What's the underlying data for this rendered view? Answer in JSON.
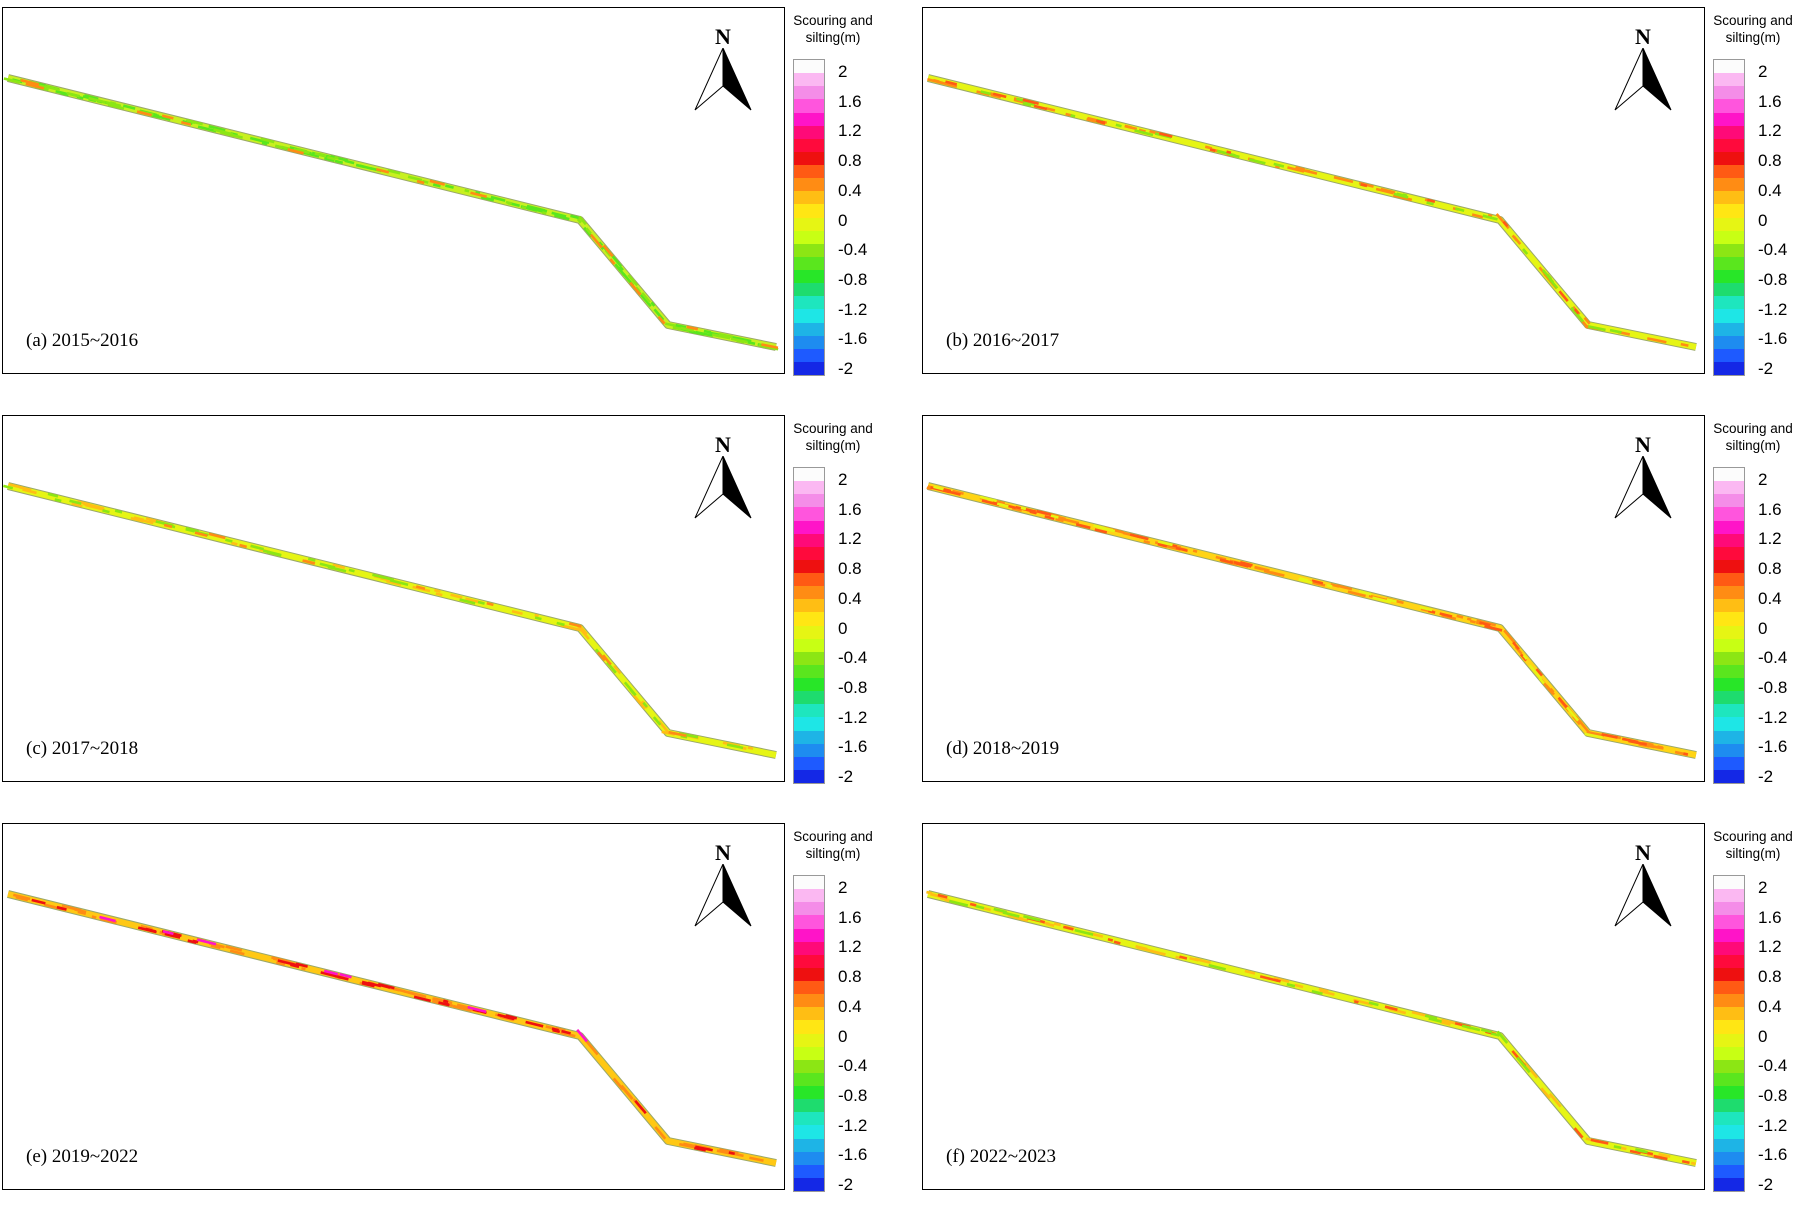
{
  "legend": {
    "title_line1": "Scouring and",
    "title_line2": "silting(m)",
    "ticks": [
      "2",
      "1.6",
      "1.2",
      "0.8",
      "0.4",
      "0",
      "-0.4",
      "-0.8",
      "-1.2",
      "-1.6",
      "-2"
    ],
    "colors": [
      "#fcfcfc",
      "#fbb8f2",
      "#f48de8",
      "#ff55dd",
      "#ff14c8",
      "#ff0a78",
      "#ff0a3c",
      "#ee1010",
      "#ff5a14",
      "#ff8c14",
      "#ffbe14",
      "#ffe614",
      "#e6f514",
      "#c8ff14",
      "#8ce614",
      "#5ae61e",
      "#28e628",
      "#1edc6e",
      "#1ee6be",
      "#1ee6e6",
      "#1eb4e6",
      "#1e8cf0",
      "#1e5aff",
      "#1428e6"
    ]
  },
  "compass": {
    "label": "N"
  },
  "panels": [
    {
      "id": "a",
      "label": "(a) 2015~2016",
      "base": "#c8f020",
      "accents": [
        [
          "#5ae61e",
          0.55
        ],
        [
          "#8ce614",
          0.35
        ],
        [
          "#ff8c14",
          0.12
        ]
      ]
    },
    {
      "id": "b",
      "label": "(b) 2016~2017",
      "base": "#e6f514",
      "accents": [
        [
          "#ff8c14",
          0.35
        ],
        [
          "#8ce614",
          0.2
        ],
        [
          "#ff5a14",
          0.1
        ]
      ]
    },
    {
      "id": "c",
      "label": "(c) 2017~2018",
      "base": "#e6f514",
      "accents": [
        [
          "#ffbe14",
          0.3
        ],
        [
          "#8ce614",
          0.25
        ],
        [
          "#ff8c14",
          0.08
        ]
      ]
    },
    {
      "id": "d",
      "label": "(d) 2018~2019",
      "base": "#ffd414",
      "accents": [
        [
          "#ff8c14",
          0.45
        ],
        [
          "#ff5a14",
          0.25
        ],
        [
          "#e6f514",
          0.15
        ]
      ]
    },
    {
      "id": "e",
      "label": "(e) 2019~2022",
      "base": "#ffc814",
      "accents": [
        [
          "#ff8c14",
          0.45
        ],
        [
          "#ee1010",
          0.25
        ],
        [
          "#ff14c8",
          0.05
        ]
      ]
    },
    {
      "id": "f",
      "label": "(f) 2022~2023",
      "base": "#e6f514",
      "accents": [
        [
          "#ffbe14",
          0.3
        ],
        [
          "#ff5a14",
          0.15
        ],
        [
          "#8ce614",
          0.15
        ]
      ]
    }
  ]
}
